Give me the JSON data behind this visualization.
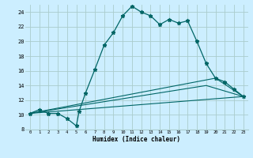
{
  "xlabel": "Humidex (Indice chaleur)",
  "bg_color": "#cceeff",
  "grid_color": "#aacccc",
  "line_color": "#006666",
  "xlim": [
    -0.5,
    23.5
  ],
  "ylim": [
    8,
    25
  ],
  "xticks": [
    0,
    1,
    2,
    3,
    4,
    5,
    6,
    7,
    8,
    9,
    10,
    11,
    12,
    13,
    14,
    15,
    16,
    17,
    18,
    19,
    20,
    21,
    22,
    23
  ],
  "yticks": [
    8,
    10,
    12,
    14,
    16,
    18,
    20,
    22,
    24
  ],
  "line1_x": [
    0,
    1,
    2,
    3,
    4,
    5,
    5.3,
    6,
    7,
    8,
    9,
    10,
    11,
    12,
    13,
    14,
    15,
    16,
    17,
    18,
    19,
    20,
    21,
    22,
    23
  ],
  "line1_y": [
    10.2,
    10.7,
    10.2,
    10.2,
    9.5,
    8.5,
    10.5,
    13.0,
    16.2,
    19.5,
    21.2,
    23.5,
    24.8,
    24.0,
    23.5,
    22.3,
    23.0,
    22.5,
    22.8,
    20.0,
    17.0,
    15.0,
    14.5,
    13.5,
    12.5
  ],
  "line2_x": [
    0,
    23
  ],
  "line2_y": [
    10.2,
    12.5
  ],
  "line3_x": [
    0,
    20,
    23
  ],
  "line3_y": [
    10.2,
    15.0,
    12.5
  ],
  "line4_x": [
    0,
    19,
    23
  ],
  "line4_y": [
    10.2,
    14.0,
    12.5
  ]
}
